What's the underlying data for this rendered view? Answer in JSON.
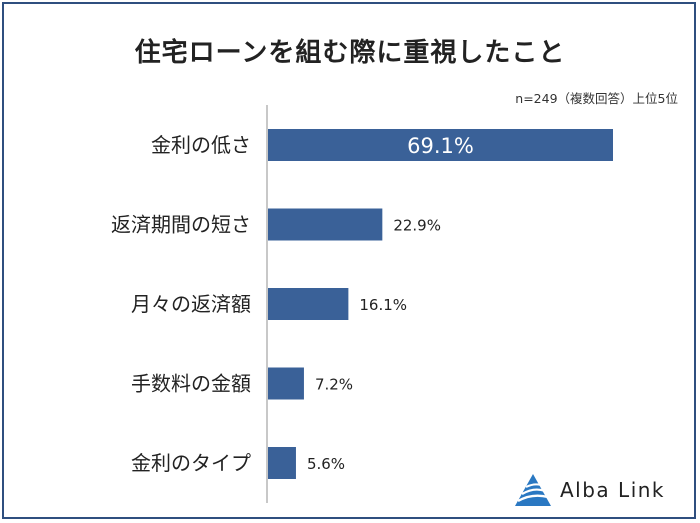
{
  "title": "住宅ローンを組む際に重視したこと",
  "note": "n=249（複数回答）上位5位",
  "logo": {
    "text": "Alba Link"
  },
  "colors": {
    "bar": "#3a6198",
    "axis": "#c8c8c8",
    "text": "#222222",
    "logo_blue": "#2a78c2"
  },
  "chart_data": {
    "type": "bar",
    "orientation": "horizontal",
    "categories": [
      "金利の低さ",
      "返済期間の短さ",
      "月々の返済額",
      "手数料の金額",
      "金利のタイプ"
    ],
    "values": [
      69.1,
      22.9,
      16.1,
      7.2,
      5.6
    ],
    "labels": [
      "69.1%",
      "22.9%",
      "16.1%",
      "7.2%",
      "5.6%"
    ],
    "unit": "%",
    "title": "住宅ローンを組む際に重視したこと",
    "xlabel": "",
    "ylabel": "",
    "xlim": [
      0,
      69.1
    ],
    "grid": false,
    "legend": "none"
  }
}
